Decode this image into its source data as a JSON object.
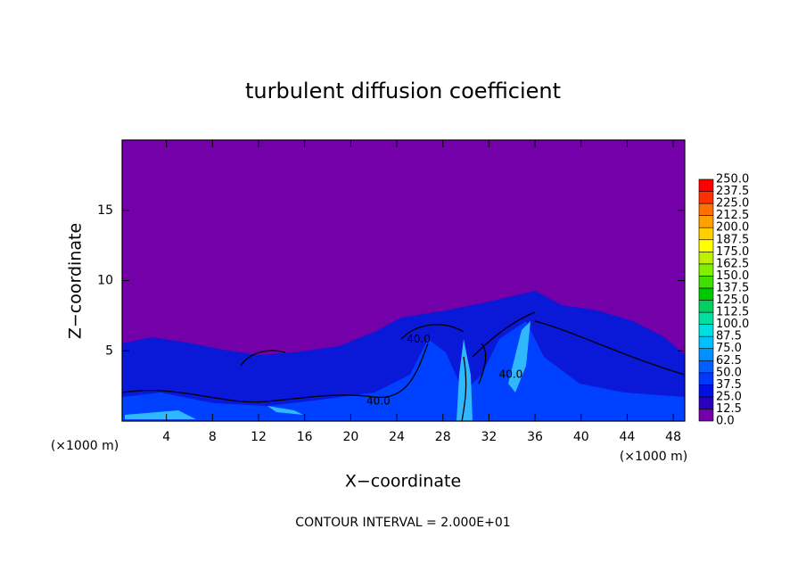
{
  "chart_data": {
    "type": "contour",
    "title": "turbulent diffusion coefficient",
    "xlabel": "X−coordinate",
    "ylabel": "Z−coordinate",
    "xunit": "(×1000 m)",
    "yunit": "(×1000 m)",
    "xlim": [
      0,
      49
    ],
    "ylim": [
      0,
      20
    ],
    "xticks": [
      4,
      8,
      12,
      16,
      20,
      24,
      28,
      32,
      36,
      40,
      44,
      48
    ],
    "yticks": [
      5,
      10,
      15
    ],
    "colorbar": {
      "levels": [
        {
          "value": 0,
          "label": "0.0"
        },
        {
          "value": 12.5,
          "label": "12.5"
        },
        {
          "value": 25,
          "label": "25.0"
        },
        {
          "value": 37.5,
          "label": "37.5"
        },
        {
          "value": 50,
          "label": "50.0"
        },
        {
          "value": 62.5,
          "label": "62.5"
        },
        {
          "value": 75,
          "label": "75.0"
        },
        {
          "value": 87.5,
          "label": "87.5"
        },
        {
          "value": 100,
          "label": "100.0"
        },
        {
          "value": 112.5,
          "label": "112.5"
        },
        {
          "value": 125,
          "label": "125.0"
        },
        {
          "value": 137.5,
          "label": "137.5"
        },
        {
          "value": 150,
          "label": "150.0"
        },
        {
          "value": 162.5,
          "label": "162.5"
        },
        {
          "value": 175,
          "label": "175.0"
        },
        {
          "value": 187.5,
          "label": "187.5"
        },
        {
          "value": 200,
          "label": "200.0"
        },
        {
          "value": 212.5,
          "label": "212.5"
        },
        {
          "value": 225,
          "label": "225.0"
        },
        {
          "value": 237.5,
          "label": "237.5"
        },
        {
          "value": 250,
          "label": "250.0"
        }
      ],
      "colors": [
        "#7300a8",
        "#2a00c0",
        "#0010e0",
        "#0038ff",
        "#0060ff",
        "#0090ff",
        "#00c0ff",
        "#00e0e0",
        "#00e0a0",
        "#00d060",
        "#00c800",
        "#40e000",
        "#80f000",
        "#c0f000",
        "#ffff00",
        "#ffd000",
        "#ffa000",
        "#ff7000",
        "#ff3000",
        "#ff0000"
      ]
    },
    "contour_labels": [
      {
        "value": 40,
        "label": "40.0",
        "x": 25.9,
        "y": 5.8
      },
      {
        "value": 40,
        "label": "40.0",
        "x": 22.4,
        "y": 1.4
      },
      {
        "value": 40,
        "label": "40.0",
        "x": 33.9,
        "y": 3.3
      }
    ],
    "footer": "CONTOUR INTERVAL = 2.000E+01"
  }
}
